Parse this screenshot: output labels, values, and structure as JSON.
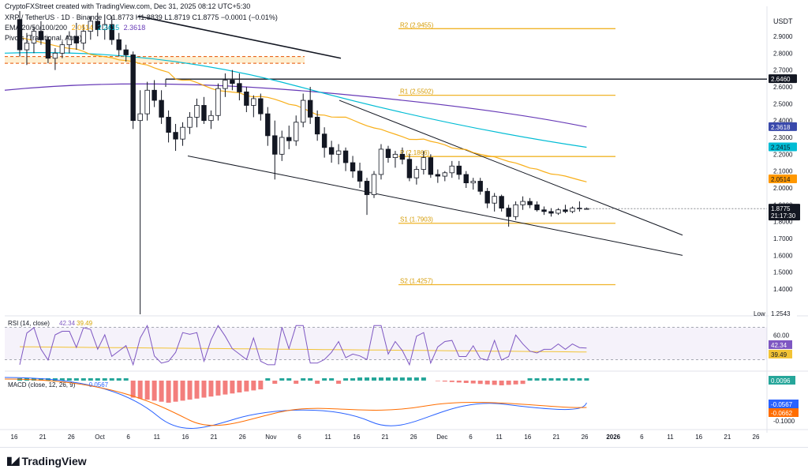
{
  "header": {
    "credit": "CryptoFXStreet created with TradingView.com, Dec 31, 2025 08:12 UTC+5:30",
    "symbol": "XRP / TetherUS · 1D · Binance",
    "ohlc": "O1.8773 H1.8839 L1.8719 C1.8775 −0.0001 (−0.01%)",
    "ema_label": "EMA 20/50/100/200",
    "ema_values": [
      "2.0514",
      "2.2415",
      "2.3618"
    ],
    "pivots_label": "Pivots (Traditional, Auto)",
    "currency": "USDT"
  },
  "colors": {
    "up": "#ffffff",
    "down": "#131722",
    "wick": "#131722",
    "ema20": "#f7a600",
    "ema50": "#00bcd4",
    "ema100": "#673ab7",
    "pivot": "#f0b429",
    "rsi": "#7e57c2",
    "rsi_ma": "#f2c335",
    "macd": "#2962ff",
    "signal": "#ff6d00",
    "hist_pos": "#26a69a",
    "hist_neg": "#ef5350"
  },
  "chart_data": [
    {
      "type": "candlestick",
      "title": "XRP / TetherUS · 1D · Binance",
      "ylim": [
        1.25,
        3.05
      ],
      "y_ticks": [
        "2.9000",
        "2.8000",
        "2.7000",
        "2.6000",
        "2.5000",
        "2.4000",
        "2.3000",
        "2.2000",
        "2.1000",
        "2.0000",
        "1.9000",
        "1.8000",
        "1.7000",
        "1.6000",
        "1.5000",
        "1.4000"
      ],
      "x_ticks": [
        "16",
        "21",
        "26",
        "Oct",
        "6",
        "11",
        "16",
        "21",
        "26",
        "Nov",
        "6",
        "11",
        "16",
        "21",
        "26",
        "Dec",
        "6",
        "11",
        "16",
        "21",
        "26",
        "2026",
        "6",
        "11",
        "16",
        "21",
        "26"
      ],
      "last_price": "1.8775",
      "countdown": "21:17:30",
      "low_label": "Low",
      "low_value": "1.2543",
      "marker_value": "2.6460",
      "pivots": [
        {
          "label": "R2 (2.9455)",
          "value": 2.9455
        },
        {
          "label": "R1 (2.5502)",
          "value": 2.5502
        },
        {
          "label": "P (2.1866)",
          "value": 2.1866
        },
        {
          "label": "S1 (1.7903)",
          "value": 1.7903
        },
        {
          "label": "S2 (1.4257)",
          "value": 1.4257
        }
      ],
      "ema_badges": [
        {
          "name": "EMA 100",
          "value": "2.3618"
        },
        {
          "name": "EMA 50",
          "value": "2.2415"
        },
        {
          "name": "EMA 20",
          "value": "2.0514"
        }
      ],
      "candles": [
        [
          3.0,
          3.05,
          2.78,
          2.82
        ],
        [
          2.82,
          2.92,
          2.73,
          2.86
        ],
        [
          2.86,
          2.96,
          2.8,
          2.93
        ],
        [
          2.93,
          2.99,
          2.85,
          2.88
        ],
        [
          2.88,
          2.9,
          2.74,
          2.77
        ],
        [
          2.77,
          2.83,
          2.7,
          2.8
        ],
        [
          2.8,
          2.87,
          2.77,
          2.85
        ],
        [
          2.85,
          2.93,
          2.8,
          2.9
        ],
        [
          2.9,
          2.98,
          2.82,
          2.86
        ],
        [
          2.86,
          2.97,
          2.82,
          2.93
        ],
        [
          2.93,
          3.02,
          2.88,
          2.99
        ],
        [
          2.99,
          3.04,
          2.9,
          2.94
        ],
        [
          2.94,
          3.03,
          2.88,
          2.97
        ],
        [
          2.97,
          3.02,
          2.85,
          2.88
        ],
        [
          2.88,
          2.92,
          2.78,
          2.82
        ],
        [
          2.82,
          2.85,
          2.75,
          2.79
        ],
        [
          2.79,
          2.81,
          2.35,
          2.4
        ],
        [
          2.4,
          2.58,
          1.25,
          2.44
        ],
        [
          2.44,
          2.63,
          2.4,
          2.58
        ],
        [
          2.58,
          2.64,
          2.48,
          2.52
        ],
        [
          2.52,
          2.58,
          2.38,
          2.42
        ],
        [
          2.42,
          2.46,
          2.27,
          2.33
        ],
        [
          2.33,
          2.38,
          2.22,
          2.29
        ],
        [
          2.29,
          2.39,
          2.25,
          2.36
        ],
        [
          2.36,
          2.45,
          2.32,
          2.42
        ],
        [
          2.42,
          2.53,
          2.36,
          2.49
        ],
        [
          2.49,
          2.54,
          2.38,
          2.4
        ],
        [
          2.4,
          2.46,
          2.35,
          2.43
        ],
        [
          2.43,
          2.62,
          2.4,
          2.59
        ],
        [
          2.59,
          2.68,
          2.54,
          2.64
        ],
        [
          2.64,
          2.7,
          2.58,
          2.62
        ],
        [
          2.62,
          2.68,
          2.52,
          2.57
        ],
        [
          2.57,
          2.6,
          2.45,
          2.49
        ],
        [
          2.49,
          2.55,
          2.42,
          2.53
        ],
        [
          2.53,
          2.56,
          2.4,
          2.44
        ],
        [
          2.44,
          2.48,
          2.25,
          2.31
        ],
        [
          2.31,
          2.4,
          2.05,
          2.2
        ],
        [
          2.2,
          2.34,
          2.16,
          2.3
        ],
        [
          2.3,
          2.37,
          2.23,
          2.28
        ],
        [
          2.28,
          2.43,
          2.25,
          2.39
        ],
        [
          2.39,
          2.56,
          2.36,
          2.52
        ],
        [
          2.52,
          2.6,
          2.38,
          2.42
        ],
        [
          2.42,
          2.46,
          2.28,
          2.32
        ],
        [
          2.32,
          2.36,
          2.18,
          2.24
        ],
        [
          2.24,
          2.28,
          2.15,
          2.2
        ],
        [
          2.2,
          2.26,
          2.14,
          2.22
        ],
        [
          2.22,
          2.24,
          2.1,
          2.15
        ],
        [
          2.15,
          2.19,
          2.06,
          2.1
        ],
        [
          2.1,
          2.15,
          2.0,
          2.04
        ],
        [
          2.04,
          2.06,
          1.84,
          1.96
        ],
        [
          1.96,
          2.1,
          1.94,
          2.08
        ],
        [
          2.08,
          2.26,
          2.05,
          2.23
        ],
        [
          2.23,
          2.25,
          2.15,
          2.18
        ],
        [
          2.18,
          2.22,
          2.12,
          2.2
        ],
        [
          2.2,
          2.24,
          2.14,
          2.17
        ],
        [
          2.17,
          2.2,
          2.04,
          2.06
        ],
        [
          2.06,
          2.13,
          2.02,
          2.11
        ],
        [
          2.11,
          2.22,
          2.08,
          2.18
        ],
        [
          2.18,
          2.2,
          2.06,
          2.08
        ],
        [
          2.08,
          2.11,
          2.03,
          2.07
        ],
        [
          2.07,
          2.1,
          2.04,
          2.09
        ],
        [
          2.09,
          2.16,
          2.06,
          2.13
        ],
        [
          2.13,
          2.16,
          2.05,
          2.08
        ],
        [
          2.08,
          2.1,
          2.0,
          2.03
        ],
        [
          2.03,
          2.06,
          1.99,
          2.04
        ],
        [
          2.04,
          2.06,
          1.96,
          1.98
        ],
        [
          1.98,
          2.0,
          1.88,
          1.91
        ],
        [
          1.91,
          1.97,
          1.86,
          1.95
        ],
        [
          1.95,
          1.96,
          1.86,
          1.88
        ],
        [
          1.88,
          1.9,
          1.77,
          1.83
        ],
        [
          1.83,
          1.92,
          1.81,
          1.9
        ],
        [
          1.9,
          1.95,
          1.87,
          1.92
        ],
        [
          1.92,
          1.94,
          1.88,
          1.9
        ],
        [
          1.9,
          1.92,
          1.86,
          1.87
        ],
        [
          1.87,
          1.89,
          1.84,
          1.86
        ],
        [
          1.86,
          1.88,
          1.83,
          1.85
        ],
        [
          1.85,
          1.88,
          1.84,
          1.87
        ],
        [
          1.87,
          1.9,
          1.85,
          1.86
        ],
        [
          1.86,
          1.89,
          1.85,
          1.88
        ],
        [
          1.88,
          1.92,
          1.86,
          1.88
        ],
        [
          1.8773,
          1.8839,
          1.8719,
          1.8775
        ]
      ]
    },
    {
      "type": "line",
      "title": "RSI (14, close)",
      "ylim": [
        20,
        80
      ],
      "value": "42.34",
      "ma_value": "39.49",
      "y_ticks": [
        "60.00"
      ],
      "bands": [
        70,
        30
      ]
    },
    {
      "type": "bar",
      "title": "MACD (close, 12, 26, 9)",
      "values_shown": [
        "0.0096",
        "-0.0567",
        "-0.0662"
      ],
      "y_ticks": [
        "-0.1000"
      ]
    }
  ]
}
